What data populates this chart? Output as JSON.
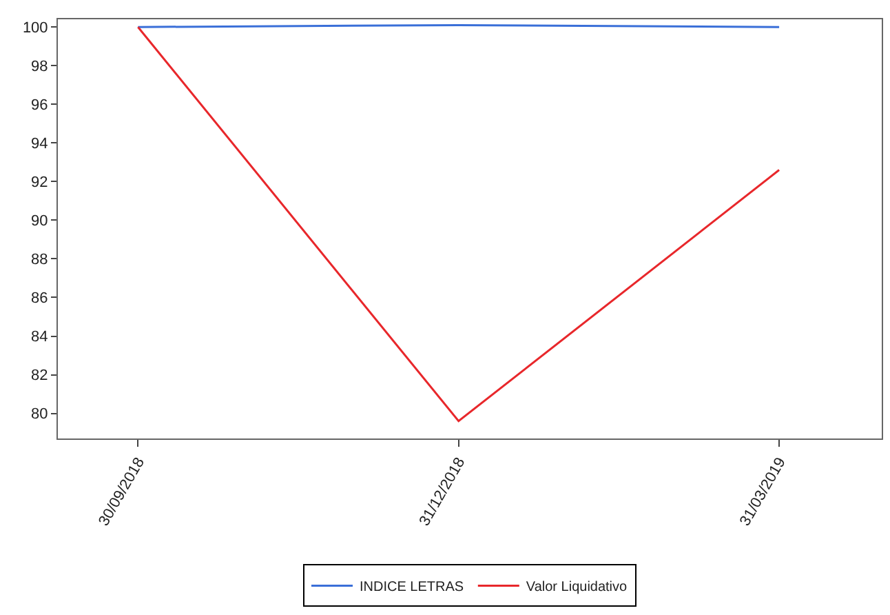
{
  "chart_data": {
    "type": "line",
    "categories": [
      "30/09/2018",
      "31/12/2018",
      "31/03/2019"
    ],
    "series": [
      {
        "name": "INDICE LETRAS",
        "color": "#3a6fd8",
        "values": [
          100,
          100.1,
          100
        ]
      },
      {
        "name": "Valor Liquidativo",
        "color": "#e8272b",
        "values": [
          100,
          79.6,
          92.6
        ]
      }
    ],
    "ylim": [
      78.7,
      100.4
    ],
    "yticks": [
      80,
      82,
      84,
      86,
      88,
      90,
      92,
      94,
      96,
      98,
      100
    ],
    "legend": "bottom",
    "marker": "none",
    "line_style": "solid"
  }
}
